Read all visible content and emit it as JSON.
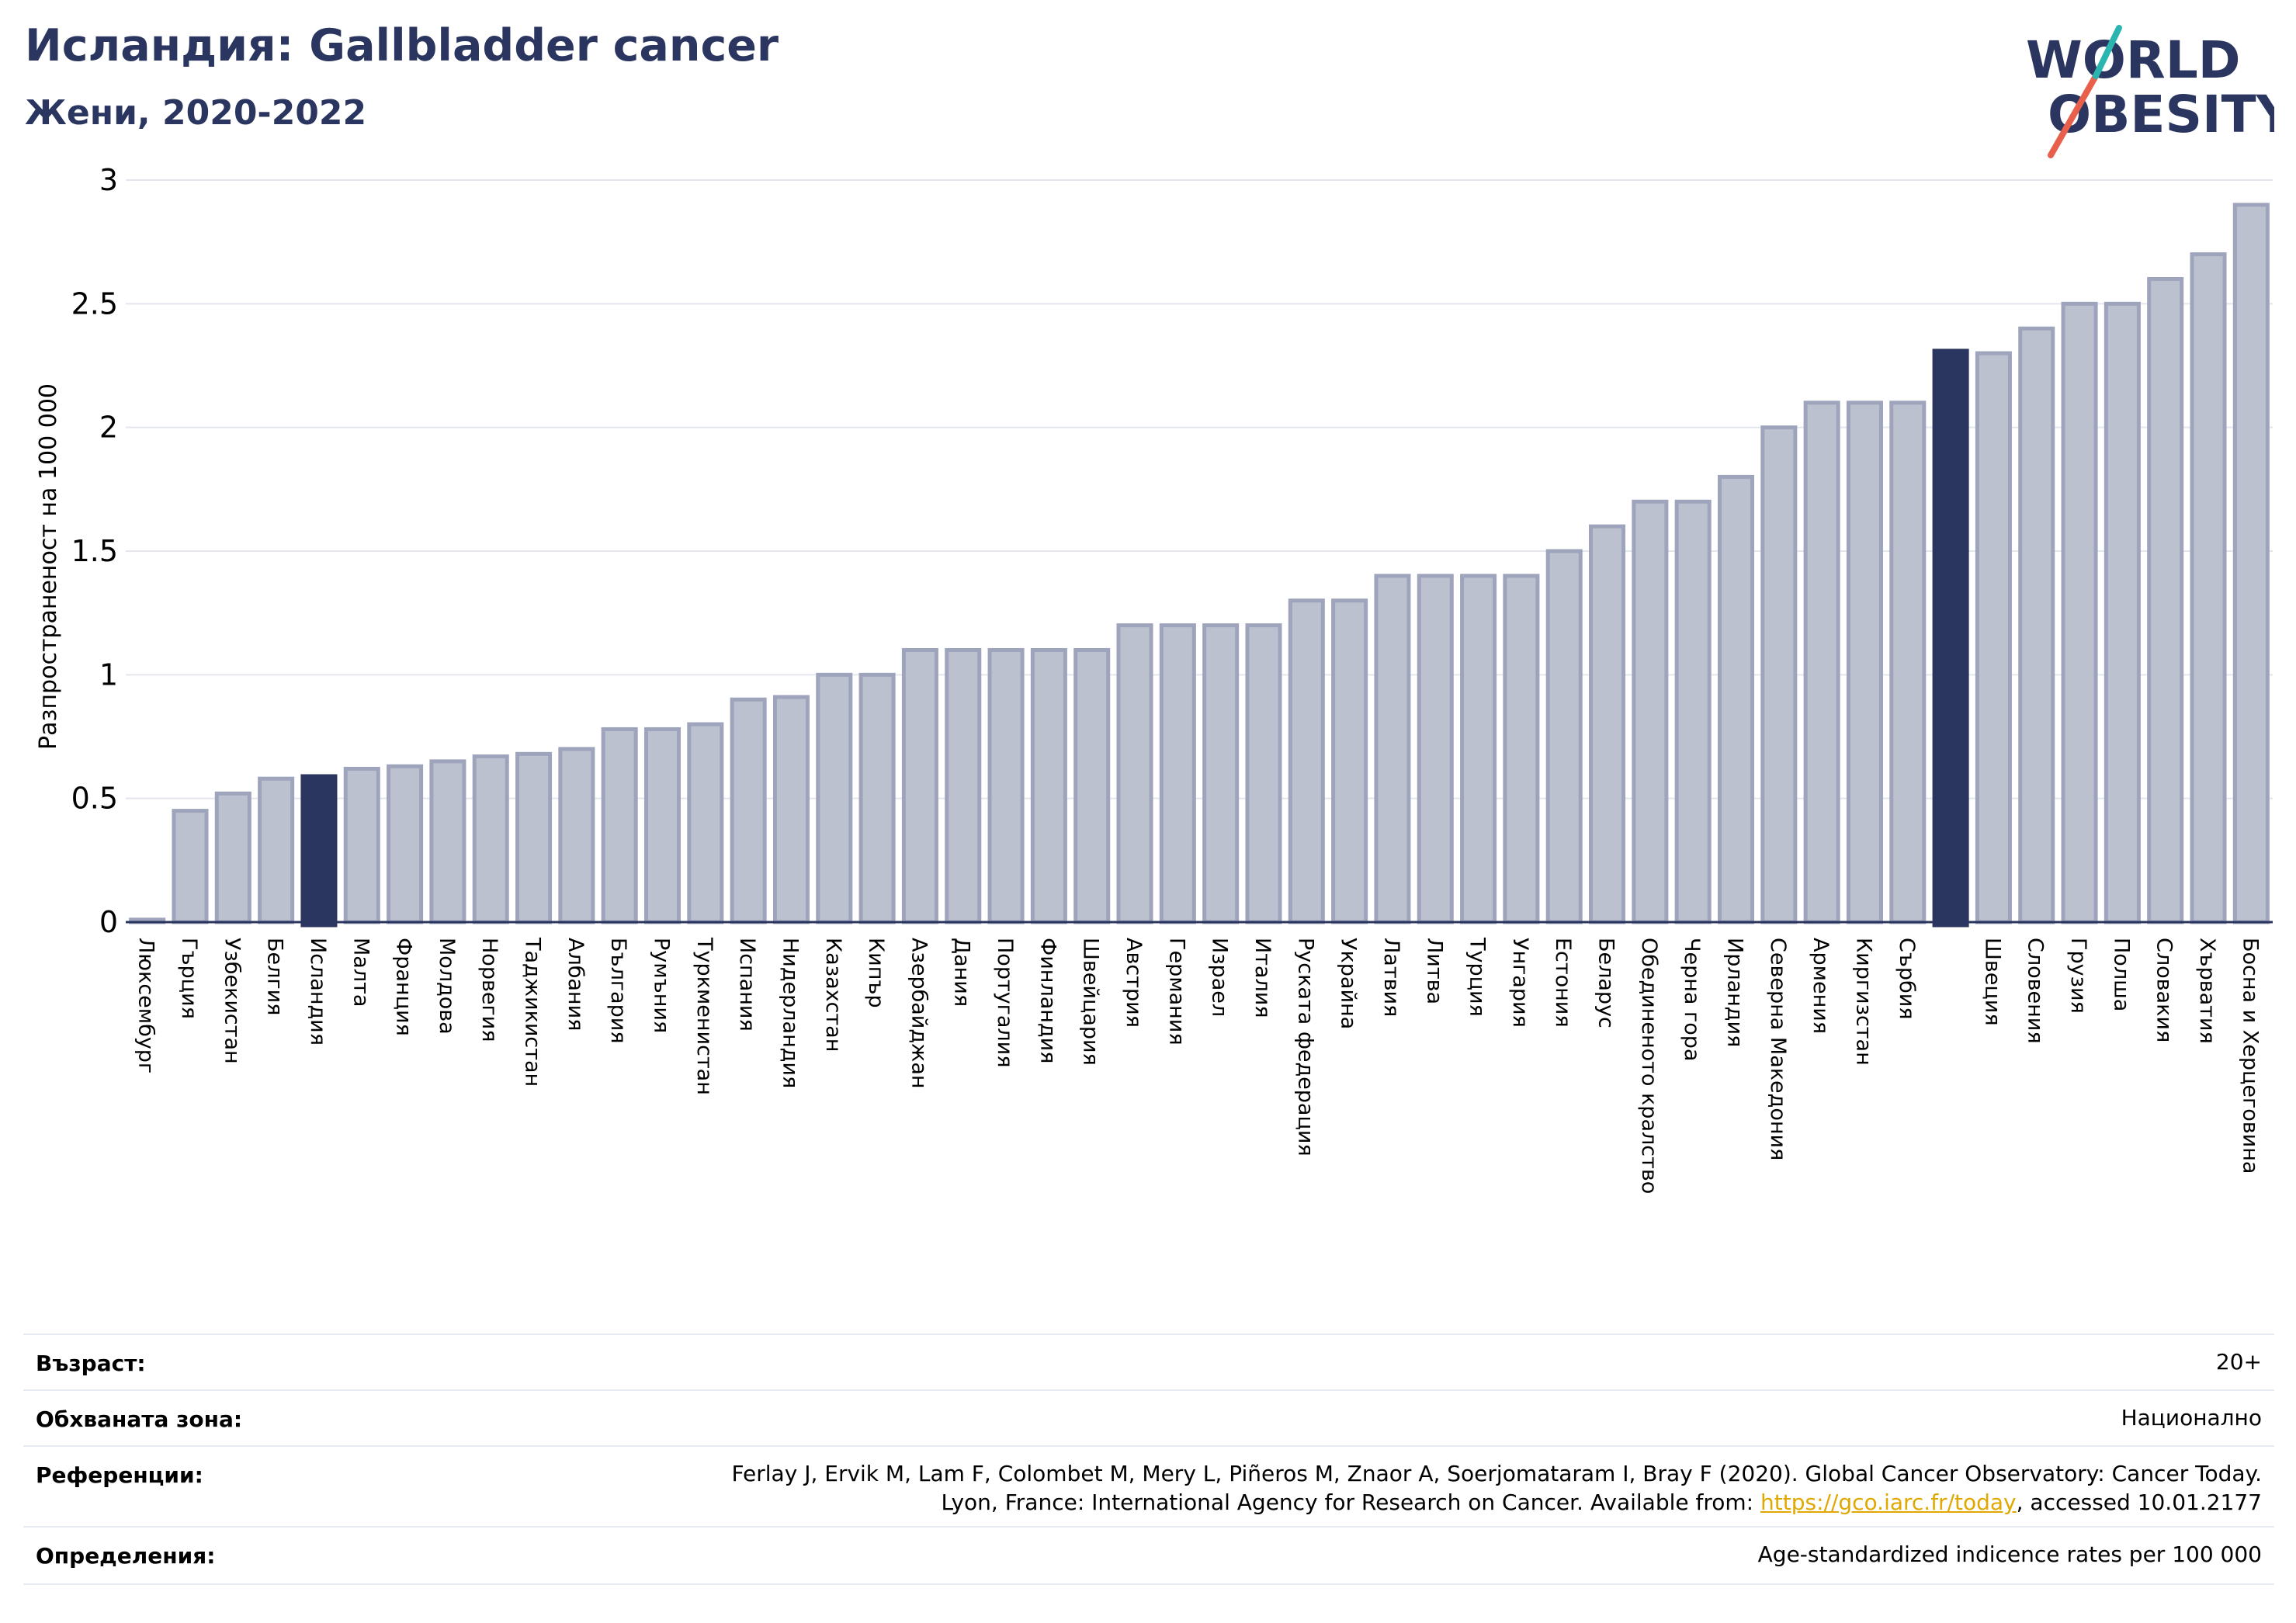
{
  "header": {
    "title": "Исландия: Gallbladder cancer",
    "subtitle": "Жени, 2020-2022"
  },
  "logo": {
    "line1": "WORLD",
    "line2": "OBESITY",
    "accent_color": "#e8604c",
    "accent_color2": "#2ab5b0",
    "text_color": "#2b3660"
  },
  "colors": {
    "bar": "#bcc1cf",
    "bar_edge": "#9ea4bb",
    "highlight": "#2b3660",
    "grid": "#e4e6ee"
  },
  "chart_data": {
    "type": "bar",
    "ylabel": "Разпространеност  на 100 000",
    "ylim": [
      0,
      3
    ],
    "yticks": [
      0,
      0.5,
      1,
      1.5,
      2,
      2.5,
      3
    ],
    "ytick_labels": [
      "0",
      "0.5",
      "1",
      "1.5",
      "2",
      "2.5",
      "3"
    ],
    "grid": true,
    "highlighted": [
      "Исландия",
      ""
    ],
    "categories": [
      "Люксембург",
      "Гърция",
      "Узбекистан",
      "Белгия",
      "Исландия",
      "Малта",
      "Франция",
      "Молдова",
      "Норвегия",
      "Таджикистан",
      "Албания",
      "България",
      "Румъния",
      "Туркменистан",
      "Испания",
      "Нидерландия",
      "Казахстан",
      "Кипър",
      "Азербайджан",
      "Дания",
      "Португалия",
      "Финландия",
      "Швейцария",
      "Австрия",
      "Германия",
      "Израел",
      "Италия",
      "Руската федерация",
      "Украйна",
      "Латвия",
      "Литва",
      "Турция",
      "Унгария",
      "Естония",
      "Беларус",
      "Обединеното кралство",
      "Черна гора",
      "Ирландия",
      "Северна Македония",
      "Армения",
      "Киргизстан",
      "Сърбия",
      "",
      "Швеция",
      "Словения",
      "Грузия",
      "Полша",
      "Словакия",
      "Хърватия",
      "Босна и Херцеговина"
    ],
    "values": [
      0.01,
      0.45,
      0.52,
      0.58,
      0.59,
      0.62,
      0.63,
      0.65,
      0.67,
      0.68,
      0.7,
      0.78,
      0.78,
      0.8,
      0.9,
      0.91,
      1.0,
      1.0,
      1.1,
      1.1,
      1.1,
      1.1,
      1.1,
      1.2,
      1.2,
      1.2,
      1.2,
      1.3,
      1.3,
      1.4,
      1.4,
      1.4,
      1.4,
      1.5,
      1.6,
      1.7,
      1.7,
      1.8,
      2.0,
      2.1,
      2.1,
      2.1,
      2.31,
      2.3,
      2.4,
      2.5,
      2.5,
      2.6,
      2.7,
      2.9
    ]
  },
  "info": {
    "rows": [
      {
        "label": "Възраст:",
        "value": "20+"
      },
      {
        "label": "Обхваната зона:",
        "value": "Национално"
      },
      {
        "label": "Референции:",
        "value_line1": "Ferlay J, Ervik M, Lam F, Colombet M, Mery L, Piñeros M, Znaor A, Soerjomataram I, Bray F (2020). Global Cancer Observatory: Cancer Today.",
        "value_line2_prefix": "Lyon, France: International Agency for Research on Cancer. Available from: ",
        "link_text": "https://gco.iarc.fr/today",
        "value_line2_suffix": ", accessed 10.01.2177"
      },
      {
        "label": "Определения:",
        "value": "Age-standardized indicence rates per 100 000"
      }
    ]
  }
}
